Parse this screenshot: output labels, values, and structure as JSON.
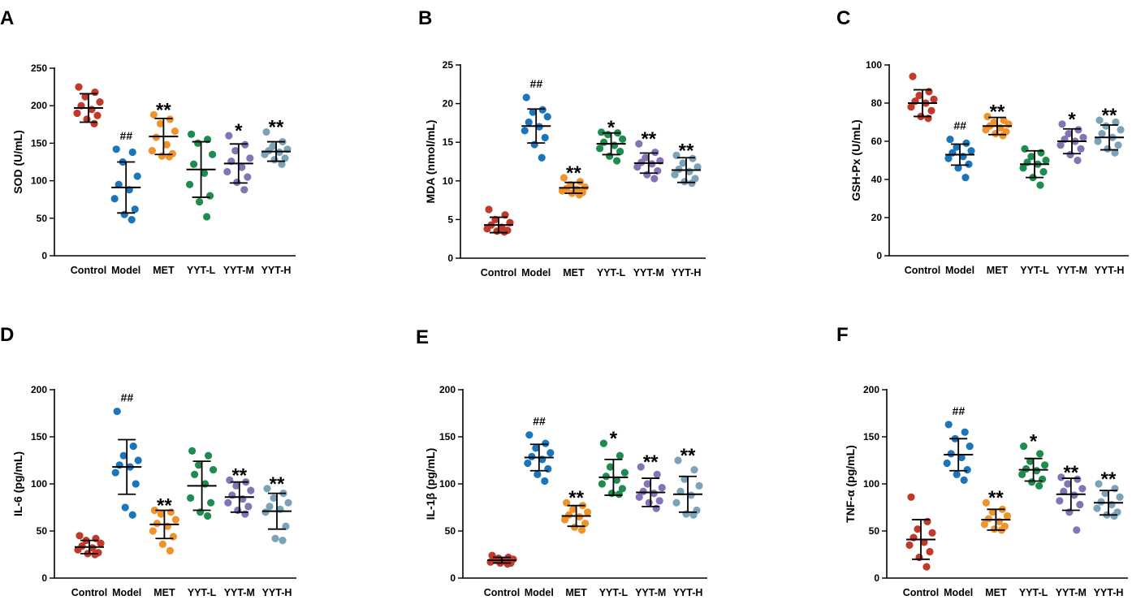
{
  "figure": {
    "layout": "2 rows x 3 columns of scatter dot plots with mean ± SD bars"
  },
  "colors": {
    "Control": "#c0392b",
    "Model": "#1b75bb",
    "MET": "#f0932b",
    "YYT-L": "#1e8c4e",
    "YYT-M": "#8474b5",
    "YYT-H": "#7aa3b8",
    "axis": "#000000"
  },
  "chart_data": [
    {
      "panel": "A",
      "type": "scatter",
      "ylabel": "SOD (U/mL)",
      "ylim": [
        0,
        250
      ],
      "yticks": [
        0,
        50,
        100,
        150,
        200,
        250
      ],
      "categories": [
        "Control",
        "Model",
        "MET",
        "YYT-L",
        "YYT-M",
        "YYT-H"
      ],
      "groups": [
        {
          "name": "Control",
          "mean": 197,
          "sd": 19,
          "points": [
            225,
            218,
            212,
            205,
            200,
            195,
            190,
            187,
            182,
            176
          ],
          "sig": ""
        },
        {
          "name": "Model",
          "mean": 91,
          "sd": 34,
          "points": [
            142,
            138,
            125,
            106,
            95,
            88,
            76,
            62,
            55,
            48
          ],
          "sig": "##"
        },
        {
          "name": "MET",
          "mean": 159,
          "sd": 24,
          "points": [
            188,
            182,
            176,
            166,
            158,
            148,
            140,
            136,
            133,
            132
          ],
          "sig": "**"
        },
        {
          "name": "YYT-L",
          "mean": 115,
          "sd": 37,
          "points": [
            162,
            155,
            150,
            135,
            122,
            110,
            95,
            80,
            72,
            52
          ],
          "sig": ""
        },
        {
          "name": "YYT-M",
          "mean": 123,
          "sd": 26,
          "points": [
            160,
            148,
            140,
            130,
            126,
            118,
            112,
            105,
            98,
            88
          ],
          "sig": "*"
        },
        {
          "name": "YYT-H",
          "mean": 139,
          "sd": 13,
          "points": [
            165,
            152,
            146,
            142,
            140,
            138,
            135,
            130,
            128,
            122
          ],
          "sig": "**"
        }
      ]
    },
    {
      "panel": "B",
      "type": "scatter",
      "ylabel": "MDA (nmol/mL)",
      "ylim": [
        0,
        25
      ],
      "yticks": [
        0,
        5,
        10,
        15,
        20,
        25
      ],
      "categories": [
        "Control",
        "Model",
        "MET",
        "YYT-L",
        "YYT-M",
        "YYT-H"
      ],
      "groups": [
        {
          "name": "Control",
          "mean": 4.3,
          "sd": 1.0,
          "points": [
            6.3,
            5.6,
            5.0,
            4.6,
            4.3,
            4.0,
            3.8,
            3.6,
            3.5,
            3.4
          ],
          "sig": ""
        },
        {
          "name": "Model",
          "mean": 17.1,
          "sd": 2.2,
          "points": [
            20.8,
            19.2,
            18.9,
            18.3,
            17.6,
            17.0,
            16.5,
            15.6,
            14.7,
            13.0
          ],
          "sig": "##"
        },
        {
          "name": "MET",
          "mean": 9.1,
          "sd": 0.7,
          "points": [
            10.4,
            9.9,
            9.5,
            9.2,
            9.0,
            8.9,
            8.7,
            8.5,
            8.4,
            8.2
          ],
          "sig": "**"
        },
        {
          "name": "YYT-L",
          "mean": 14.8,
          "sd": 1.4,
          "points": [
            16.3,
            16.2,
            16.0,
            15.4,
            15.0,
            14.6,
            14.2,
            13.8,
            13.2,
            12.6
          ],
          "sig": "*"
        },
        {
          "name": "YYT-M",
          "mean": 12.3,
          "sd": 1.3,
          "points": [
            14.8,
            13.7,
            13.0,
            12.6,
            12.4,
            12.2,
            11.8,
            11.3,
            10.8,
            10.3
          ],
          "sig": "**"
        },
        {
          "name": "YYT-H",
          "mean": 11.4,
          "sd": 1.6,
          "points": [
            13.3,
            12.9,
            12.3,
            11.8,
            11.5,
            11.2,
            10.8,
            10.3,
            9.9,
            9.7
          ],
          "sig": "**"
        }
      ]
    },
    {
      "panel": "C",
      "type": "scatter",
      "ylabel": "GSH-Px (U/mL)",
      "ylim": [
        0,
        100
      ],
      "yticks": [
        0,
        20,
        40,
        60,
        80,
        100
      ],
      "categories": [
        "Control",
        "Model",
        "MET",
        "YYT-L",
        "YYT-M",
        "YYT-H"
      ],
      "groups": [
        {
          "name": "Control",
          "mean": 80,
          "sd": 7,
          "points": [
            94,
            86,
            84,
            82,
            81,
            80,
            78,
            76,
            73,
            72
          ],
          "sig": ""
        },
        {
          "name": "Model",
          "mean": 53,
          "sd": 5.5,
          "points": [
            61,
            59,
            57,
            55,
            54,
            52,
            51,
            48,
            46,
            41
          ],
          "sig": "##"
        },
        {
          "name": "MET",
          "mean": 68,
          "sd": 4.5,
          "points": [
            73,
            71,
            70,
            69,
            68,
            67,
            66,
            65,
            64,
            63
          ],
          "sig": "**"
        },
        {
          "name": "YYT-L",
          "mean": 48,
          "sd": 7,
          "points": [
            56,
            54,
            52,
            50,
            49,
            48,
            46,
            44,
            41,
            37
          ],
          "sig": ""
        },
        {
          "name": "YYT-M",
          "mean": 60,
          "sd": 6.5,
          "points": [
            69,
            66,
            64,
            62,
            61,
            60,
            58,
            56,
            53,
            50
          ],
          "sig": "*"
        },
        {
          "name": "YYT-H",
          "mean": 62,
          "sd": 6.5,
          "points": [
            71,
            70,
            68,
            66,
            64,
            62,
            60,
            58,
            56,
            54
          ],
          "sig": "**"
        }
      ]
    },
    {
      "panel": "D",
      "type": "scatter",
      "ylabel": "IL-6 (pg/mL)",
      "ylim": [
        0,
        200
      ],
      "yticks": [
        0,
        50,
        100,
        150,
        200
      ],
      "categories": [
        "Control",
        "Model",
        "MET",
        "YYT-L",
        "YYT-M",
        "YYT-H"
      ],
      "groups": [
        {
          "name": "Control",
          "mean": 33,
          "sd": 7,
          "points": [
            45,
            42,
            40,
            37,
            34,
            32,
            30,
            27,
            26,
            25
          ],
          "sig": ""
        },
        {
          "name": "Model",
          "mean": 118,
          "sd": 29,
          "points": [
            177,
            140,
            130,
            125,
            120,
            118,
            112,
            100,
            75,
            67
          ],
          "sig": "##"
        },
        {
          "name": "MET",
          "mean": 57,
          "sd": 15,
          "points": [
            72,
            70,
            68,
            62,
            58,
            55,
            50,
            44,
            36,
            29
          ],
          "sig": "**"
        },
        {
          "name": "YYT-L",
          "mean": 98,
          "sd": 26,
          "points": [
            135,
            130,
            120,
            115,
            110,
            100,
            85,
            80,
            70,
            66
          ],
          "sig": ""
        },
        {
          "name": "YYT-M",
          "mean": 86,
          "sd": 16,
          "points": [
            104,
            102,
            98,
            93,
            88,
            84,
            80,
            76,
            72,
            68
          ],
          "sig": "**"
        },
        {
          "name": "YYT-H",
          "mean": 71,
          "sd": 19,
          "points": [
            95,
            90,
            85,
            80,
            76,
            73,
            70,
            55,
            42,
            40
          ],
          "sig": "**"
        }
      ]
    },
    {
      "panel": "E",
      "type": "scatter",
      "ylabel": "IL-1β (pg/mL)",
      "ylim": [
        0,
        200
      ],
      "yticks": [
        0,
        50,
        100,
        150,
        200
      ],
      "categories": [
        "Control",
        "Model",
        "MET",
        "YYT-L",
        "YYT-M",
        "YYT-H"
      ],
      "groups": [
        {
          "name": "Control",
          "mean": 19,
          "sd": 3,
          "points": [
            24,
            22,
            21,
            20,
            19,
            18,
            17,
            16,
            16,
            15
          ],
          "sig": ""
        },
        {
          "name": "Model",
          "mean": 128,
          "sd": 14,
          "points": [
            152,
            143,
            138,
            133,
            129,
            126,
            122,
            116,
            110,
            103
          ],
          "sig": "##"
        },
        {
          "name": "MET",
          "mean": 66,
          "sd": 11,
          "points": [
            80,
            77,
            73,
            70,
            67,
            65,
            62,
            58,
            54,
            51
          ],
          "sig": "**"
        },
        {
          "name": "YYT-L",
          "mean": 107,
          "sd": 19,
          "points": [
            143,
            130,
            118,
            112,
            108,
            104,
            100,
            95,
            90,
            89
          ],
          "sig": "*"
        },
        {
          "name": "YYT-M",
          "mean": 91,
          "sd": 15,
          "points": [
            118,
            110,
            100,
            96,
            92,
            90,
            86,
            82,
            80,
            74
          ],
          "sig": "**"
        },
        {
          "name": "YYT-H",
          "mean": 89,
          "sd": 19,
          "points": [
            125,
            115,
            105,
            98,
            92,
            88,
            80,
            72,
            68,
            67
          ],
          "sig": "**"
        }
      ]
    },
    {
      "panel": "F",
      "type": "scatter",
      "ylabel": "TNF-α (pg/mL)",
      "ylim": [
        0,
        200
      ],
      "yticks": [
        0,
        50,
        100,
        150,
        200
      ],
      "categories": [
        "Control",
        "Model",
        "MET",
        "YYT-L",
        "YYT-M",
        "YYT-H"
      ],
      "groups": [
        {
          "name": "Control",
          "mean": 41,
          "sd": 21,
          "points": [
            86,
            60,
            52,
            48,
            43,
            38,
            35,
            28,
            22,
            12
          ],
          "sig": ""
        },
        {
          "name": "Model",
          "mean": 131,
          "sd": 17,
          "points": [
            163,
            155,
            148,
            140,
            132,
            128,
            122,
            115,
            110,
            104
          ],
          "sig": "##"
        },
        {
          "name": "MET",
          "mean": 62,
          "sd": 11,
          "points": [
            80,
            73,
            70,
            66,
            63,
            60,
            57,
            55,
            52,
            51
          ],
          "sig": "**"
        },
        {
          "name": "YYT-L",
          "mean": 115,
          "sd": 12,
          "points": [
            140,
            132,
            124,
            120,
            116,
            114,
            110,
            105,
            102,
            98
          ],
          "sig": "*"
        },
        {
          "name": "YYT-M",
          "mean": 89,
          "sd": 17,
          "points": [
            107,
            105,
            100,
            95,
            92,
            88,
            82,
            78,
            70,
            51
          ],
          "sig": "**"
        },
        {
          "name": "YYT-H",
          "mean": 80,
          "sd": 13,
          "points": [
            100,
            95,
            90,
            86,
            81,
            78,
            74,
            70,
            67,
            66
          ],
          "sig": "**"
        }
      ]
    }
  ]
}
